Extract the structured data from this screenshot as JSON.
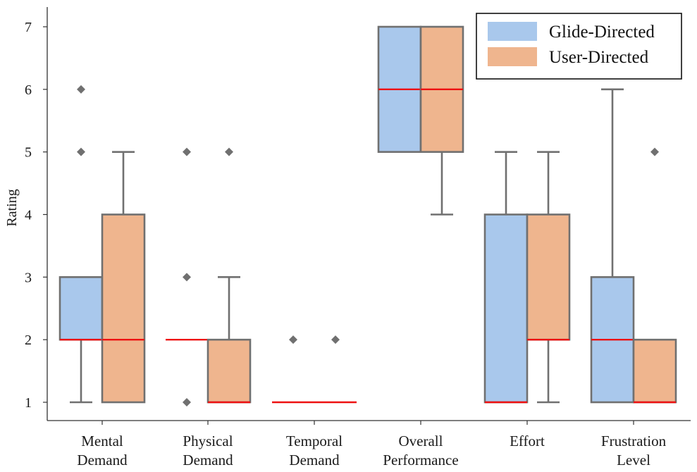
{
  "chart_data": {
    "type": "boxplot",
    "title": "",
    "xlabel": "",
    "ylabel": "Rating",
    "ylim": [
      0.7,
      7.3
    ],
    "yticks": [
      "1",
      "2",
      "3",
      "4",
      "5",
      "6",
      "7"
    ],
    "legend_position": "top-right",
    "categories": [
      [
        "Mental",
        "Demand"
      ],
      [
        "Physical",
        "Demand"
      ],
      [
        "Temporal",
        "Demand"
      ],
      [
        "Overall",
        "Performance"
      ],
      [
        "Effort",
        ""
      ],
      [
        "Frustration",
        "Level"
      ]
    ],
    "series": [
      {
        "name": "Glide-Directed",
        "color": "#a9c8ec",
        "boxes": [
          {
            "whisker_low": 1,
            "q1": 2,
            "median": 2,
            "q3": 3,
            "whisker_high": 3,
            "outliers": [
              5,
              6
            ]
          },
          {
            "whisker_low": 2,
            "q1": 2,
            "median": 2,
            "q3": 2,
            "whisker_high": 2,
            "outliers": [
              1,
              3,
              5
            ]
          },
          {
            "whisker_low": 1,
            "q1": 1,
            "median": 1,
            "q3": 1,
            "whisker_high": 1,
            "outliers": [
              2
            ]
          },
          {
            "whisker_low": 5,
            "q1": 5,
            "median": 6,
            "q3": 7,
            "whisker_high": 7,
            "outliers": []
          },
          {
            "whisker_low": 1,
            "q1": 1,
            "median": 1,
            "q3": 4,
            "whisker_high": 5,
            "outliers": []
          },
          {
            "whisker_low": 1,
            "q1": 1,
            "median": 2,
            "q3": 3,
            "whisker_high": 6,
            "outliers": []
          }
        ]
      },
      {
        "name": "User-Directed",
        "color": "#efb58e",
        "boxes": [
          {
            "whisker_low": 1,
            "q1": 1,
            "median": 2,
            "q3": 4,
            "whisker_high": 5,
            "outliers": []
          },
          {
            "whisker_low": 1,
            "q1": 1,
            "median": 1,
            "q3": 2,
            "whisker_high": 3,
            "outliers": [
              5
            ]
          },
          {
            "whisker_low": 1,
            "q1": 1,
            "median": 1,
            "q3": 1,
            "whisker_high": 1,
            "outliers": [
              2
            ]
          },
          {
            "whisker_low": 4,
            "q1": 5,
            "median": 6,
            "q3": 7,
            "whisker_high": 7,
            "outliers": []
          },
          {
            "whisker_low": 1,
            "q1": 2,
            "median": 2,
            "q3": 4,
            "whisker_high": 5,
            "outliers": []
          },
          {
            "whisker_low": 1,
            "q1": 1,
            "median": 1,
            "q3": 2,
            "whisker_high": 2,
            "outliers": [
              5
            ]
          }
        ]
      }
    ],
    "median_color": "#ee1111",
    "line_color": "#707070"
  }
}
